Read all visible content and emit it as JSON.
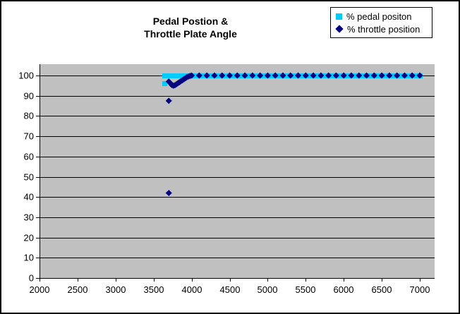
{
  "title": {
    "line1": "Pedal Postion &",
    "line2": "Throttle Plate Angle"
  },
  "legend": {
    "position": "top-right",
    "items": [
      {
        "label": "% pedal positon",
        "marker": "square",
        "color": "#00CCFF"
      },
      {
        "label": "% throttle position",
        "marker": "diamond",
        "color": "#000080"
      }
    ]
  },
  "colors": {
    "background": "#FFFFFF",
    "border": "#000000",
    "plot_background": "#C0C0C0",
    "gridline": "#000000",
    "text": "#000000",
    "pedal_series": "#00CCFF",
    "throttle_series": "#000080"
  },
  "chart_data": {
    "type": "scatter",
    "title": "Pedal Postion & Throttle Plate Angle",
    "xlabel": "",
    "ylabel": "",
    "xlim": [
      2000,
      7000
    ],
    "ylim": [
      0,
      100
    ],
    "xticks": [
      2000,
      2500,
      3000,
      3500,
      4000,
      4500,
      5000,
      5500,
      6000,
      6500,
      7000
    ],
    "yticks": [
      0,
      10,
      20,
      30,
      40,
      50,
      60,
      70,
      80,
      90,
      100
    ],
    "grid": "horizontal",
    "plot_background": "#C0C0C0",
    "legend_position": "top-right",
    "series": [
      {
        "name": "% pedal positon",
        "marker": "square",
        "color": "#00CCFF",
        "points": [
          [
            3650,
            96
          ],
          [
            3650,
            100
          ],
          [
            3700,
            100
          ],
          [
            3750,
            100
          ],
          [
            3800,
            100
          ],
          [
            3850,
            100
          ],
          [
            3900,
            100
          ],
          [
            3950,
            100
          ],
          [
            4000,
            100
          ],
          [
            4050,
            100
          ],
          [
            4100,
            100
          ],
          [
            4150,
            100
          ],
          [
            4200,
            100
          ],
          [
            4250,
            100
          ],
          [
            4300,
            100
          ],
          [
            4350,
            100
          ],
          [
            4400,
            100
          ],
          [
            4450,
            100
          ],
          [
            4500,
            100
          ],
          [
            4550,
            100
          ],
          [
            4600,
            100
          ],
          [
            4650,
            100
          ],
          [
            4700,
            100
          ],
          [
            4750,
            100
          ],
          [
            4800,
            100
          ],
          [
            4850,
            100
          ],
          [
            4900,
            100
          ],
          [
            4950,
            100
          ],
          [
            5000,
            100
          ],
          [
            5050,
            100
          ],
          [
            5100,
            100
          ],
          [
            5150,
            100
          ],
          [
            5200,
            100
          ],
          [
            5250,
            100
          ],
          [
            5300,
            100
          ],
          [
            5350,
            100
          ],
          [
            5400,
            100
          ],
          [
            5450,
            100
          ],
          [
            5500,
            100
          ],
          [
            5550,
            100
          ],
          [
            5600,
            100
          ],
          [
            5650,
            100
          ],
          [
            5700,
            100
          ],
          [
            5750,
            100
          ],
          [
            5800,
            100
          ],
          [
            5850,
            100
          ],
          [
            5900,
            100
          ],
          [
            5950,
            100
          ],
          [
            6000,
            100
          ],
          [
            6050,
            100
          ],
          [
            6100,
            100
          ],
          [
            6150,
            100
          ],
          [
            6200,
            100
          ],
          [
            6250,
            100
          ],
          [
            6300,
            100
          ],
          [
            6350,
            100
          ],
          [
            6400,
            100
          ],
          [
            6450,
            100
          ],
          [
            6500,
            100
          ],
          [
            6550,
            100
          ],
          [
            6600,
            100
          ],
          [
            6650,
            100
          ],
          [
            6700,
            100
          ],
          [
            6750,
            100
          ],
          [
            6800,
            100
          ],
          [
            6850,
            100
          ],
          [
            6900,
            100
          ],
          [
            6950,
            100
          ],
          [
            7000,
            100
          ]
        ]
      },
      {
        "name": "% throttle position",
        "marker": "diamond",
        "color": "#000080",
        "points": [
          [
            3700,
            87.5
          ],
          [
            3700,
            42
          ],
          [
            3700,
            97
          ],
          [
            3720,
            96.2
          ],
          [
            3740,
            95.3
          ],
          [
            3760,
            95
          ],
          [
            3780,
            95.2
          ],
          [
            3800,
            95.7
          ],
          [
            3820,
            96.2
          ],
          [
            3840,
            96.7
          ],
          [
            3860,
            97.2
          ],
          [
            3880,
            97.7
          ],
          [
            3900,
            98.2
          ],
          [
            3920,
            98.7
          ],
          [
            3940,
            99.2
          ],
          [
            3960,
            99.5
          ],
          [
            3980,
            99.8
          ],
          [
            4000,
            100
          ],
          [
            4100,
            100
          ],
          [
            4200,
            100
          ],
          [
            4300,
            100
          ],
          [
            4400,
            100
          ],
          [
            4500,
            100
          ],
          [
            4600,
            100
          ],
          [
            4700,
            100
          ],
          [
            4800,
            100
          ],
          [
            4900,
            100
          ],
          [
            5000,
            100
          ],
          [
            5100,
            100
          ],
          [
            5200,
            100
          ],
          [
            5300,
            100
          ],
          [
            5400,
            100
          ],
          [
            5500,
            100
          ],
          [
            5600,
            100
          ],
          [
            5700,
            100
          ],
          [
            5800,
            100
          ],
          [
            5900,
            100
          ],
          [
            6000,
            100
          ],
          [
            6100,
            100
          ],
          [
            6200,
            100
          ],
          [
            6300,
            100
          ],
          [
            6400,
            100
          ],
          [
            6500,
            100
          ],
          [
            6600,
            100
          ],
          [
            6700,
            100
          ],
          [
            6800,
            100
          ],
          [
            6900,
            100
          ],
          [
            7000,
            100
          ]
        ]
      }
    ]
  }
}
